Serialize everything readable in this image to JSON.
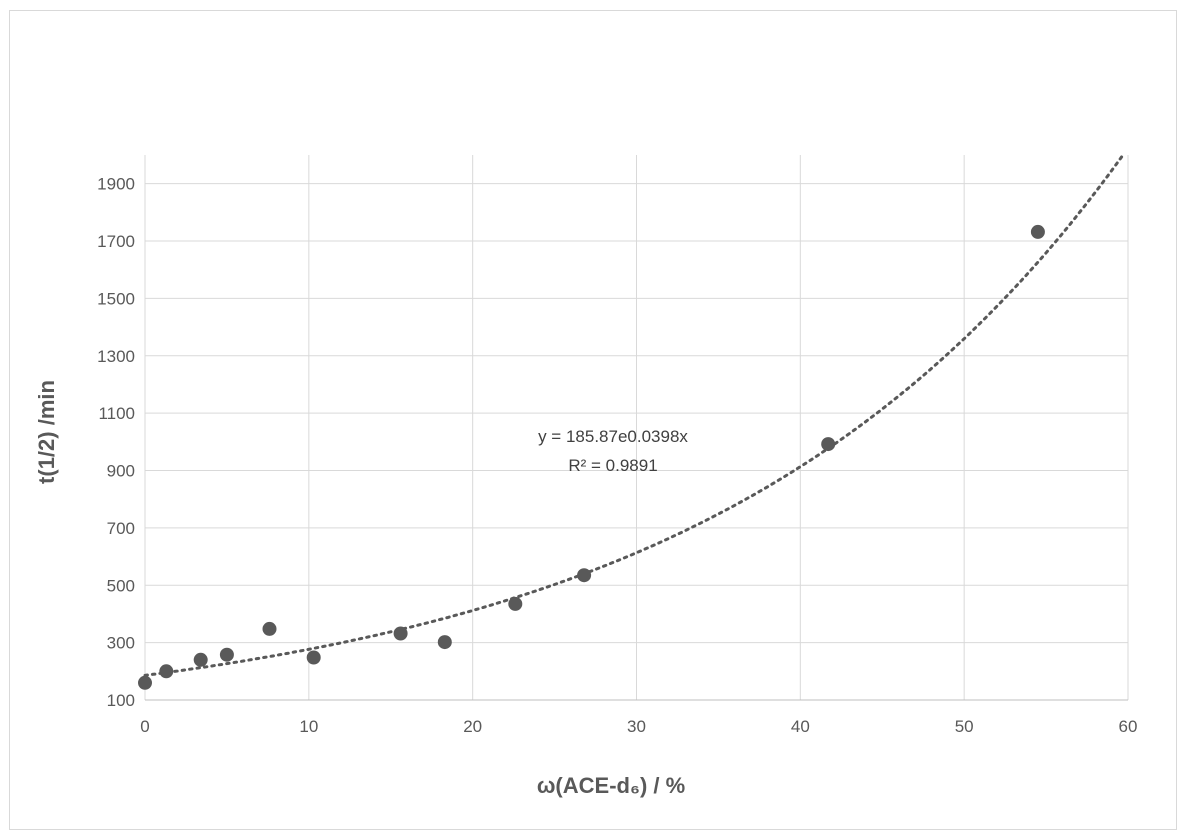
{
  "chart_data": {
    "type": "scatter",
    "title": "",
    "xlabel": "ω(ACE-d₆) / %",
    "ylabel": "t(1/2) /min",
    "xlim": [
      0,
      60
    ],
    "ylim": [
      100,
      2000
    ],
    "x_ticks": [
      0,
      10,
      20,
      30,
      40,
      50,
      60
    ],
    "y_ticks": [
      100,
      300,
      500,
      700,
      900,
      1100,
      1300,
      1500,
      1700,
      1900
    ],
    "grid": "vertical and horizontal major gridlines",
    "legend": "none",
    "marker_color": "#595959",
    "points": [
      {
        "x": 0,
        "y": 160
      },
      {
        "x": 1.3,
        "y": 200
      },
      {
        "x": 3.4,
        "y": 240
      },
      {
        "x": 5.0,
        "y": 258
      },
      {
        "x": 7.6,
        "y": 348
      },
      {
        "x": 10.3,
        "y": 248
      },
      {
        "x": 15.6,
        "y": 332
      },
      {
        "x": 18.3,
        "y": 302
      },
      {
        "x": 22.6,
        "y": 435
      },
      {
        "x": 26.8,
        "y": 535
      },
      {
        "x": 41.7,
        "y": 992
      },
      {
        "x": 54.5,
        "y": 1732
      }
    ],
    "trendline": {
      "type": "exponential",
      "a": 185.87,
      "b": 0.0398,
      "style": "dotted",
      "equation_label": "y = 185.87e0.0398x",
      "r2_label": "R² = 0.9891"
    }
  }
}
